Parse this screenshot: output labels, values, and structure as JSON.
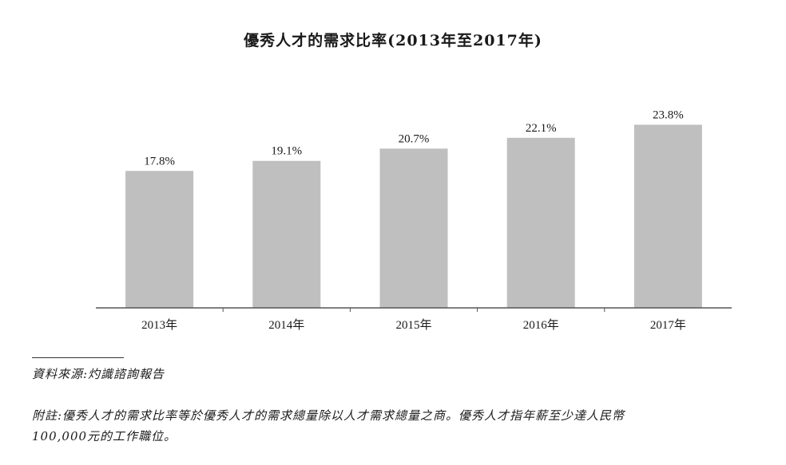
{
  "chart_data": {
    "type": "bar",
    "title": "優秀人才的需求比率(2013年至2017年)",
    "categories": [
      "2013年",
      "2014年",
      "2015年",
      "2016年",
      "2017年"
    ],
    "values": [
      17.8,
      19.1,
      20.7,
      22.1,
      23.8
    ],
    "data_labels": [
      "17.8%",
      "19.1%",
      "20.7%",
      "22.1%",
      "23.8%"
    ],
    "unit": "%",
    "ylim": [
      0,
      25.5
    ],
    "grid": false,
    "bar_color": "#bfbfbf",
    "axis_color": "#555555"
  },
  "footer": {
    "source": "資料來源:灼識諮詢報告",
    "note_line1": "附註:優秀人才的需求比率等於優秀人才的需求總量除以人才需求總量之商。優秀人才指年薪至少達人民幣",
    "note_line2": "100,000元的工作職位。"
  }
}
